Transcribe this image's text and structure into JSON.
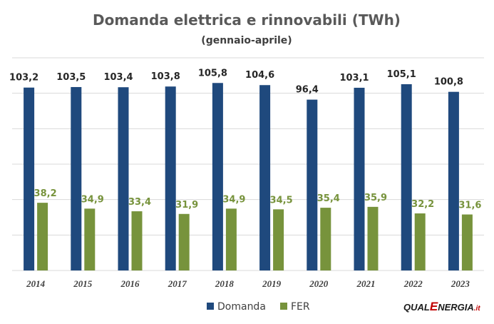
{
  "chart_data": {
    "type": "bar",
    "title": "Domanda elettrica e rinnovabili (TWh)",
    "subtitle": "(gennaio-aprile)",
    "categories": [
      "2014",
      "2015",
      "2016",
      "2017",
      "2018",
      "2019",
      "2020",
      "2021",
      "2022",
      "2023"
    ],
    "series": [
      {
        "name": "Domanda",
        "color": "#1f497d",
        "values": [
          103.2,
          103.5,
          103.4,
          103.8,
          105.8,
          104.6,
          96.4,
          103.1,
          105.1,
          100.8
        ],
        "labels": [
          "103,2",
          "103,5",
          "103,4",
          "103,8",
          "105,8",
          "104,6",
          "96,4",
          "103,1",
          "105,1",
          "100,8"
        ],
        "label_color": "#262626"
      },
      {
        "name": "FER",
        "color": "#77933c",
        "values": [
          38.2,
          34.9,
          33.4,
          31.9,
          34.9,
          34.5,
          35.4,
          35.9,
          32.2,
          31.6
        ],
        "labels": [
          "38,2",
          "34,9",
          "33,4",
          "31,9",
          "34,9",
          "34,5",
          "35,4",
          "35,9",
          "32,2",
          "31,6"
        ],
        "label_color": "#77933c"
      }
    ],
    "ylim": [
      0,
      120
    ],
    "y_gridlines": [
      0,
      20,
      40,
      60,
      80,
      100,
      120
    ],
    "y_tick_labels_shown": false,
    "grid": true,
    "legend_position": "bottom",
    "gridline_color": "#d9d9d9"
  },
  "branding": {
    "logo_text": "QUALENERGIA.it",
    "logo_parts": [
      "QUAL",
      "E",
      "NERGIA",
      ".it"
    ],
    "logo_colors": {
      "dark": "#1a1a1a",
      "accent": "#c00000"
    }
  }
}
